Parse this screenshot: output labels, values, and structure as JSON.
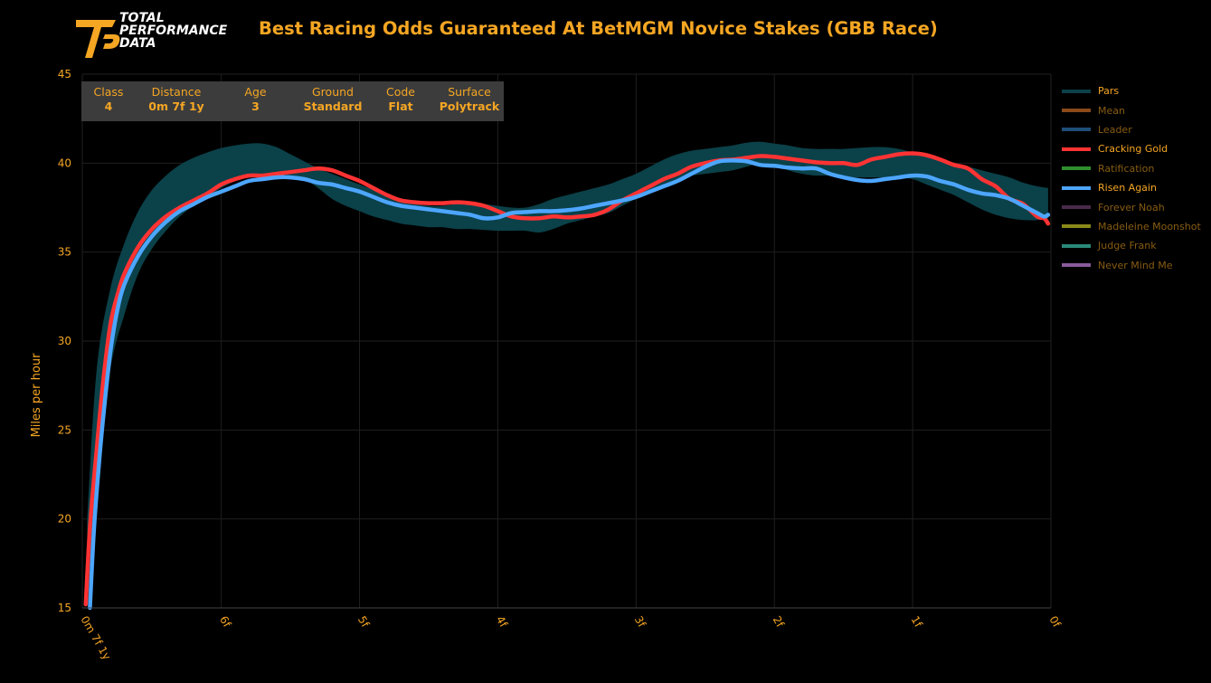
{
  "brand": {
    "line1": "TOTAL",
    "line2": "PERFORMANCE",
    "line3": "DATA"
  },
  "title": "Best Racing Odds Guaranteed At BetMGM Novice Stakes (GBB Race)",
  "colors": {
    "accent": "#f5a623",
    "band": "#0b4149",
    "grid": "#1f1f1f"
  },
  "race_info": [
    {
      "label": "Class",
      "value": "4"
    },
    {
      "label": "Distance",
      "value": "0m 7f 1y"
    },
    {
      "label": "Age",
      "value": "3"
    },
    {
      "label": "Ground",
      "value": "Standard"
    },
    {
      "label": "Code",
      "value": "Flat"
    },
    {
      "label": "Surface",
      "value": "Polytrack"
    }
  ],
  "chart_data": {
    "type": "line",
    "title": "Best Racing Odds Guaranteed At BetMGM Novice Stakes (GBB Race)",
    "xlabel": "",
    "ylabel": "Miles per hour",
    "xlim": [
      7.005,
      0
    ],
    "ylim": [
      15,
      45
    ],
    "x_ticks": [
      {
        "x": 7.005,
        "label": "0m 7f 1y"
      },
      {
        "x": 6,
        "label": "6f"
      },
      {
        "x": 5,
        "label": "5f"
      },
      {
        "x": 4,
        "label": "4f"
      },
      {
        "x": 3,
        "label": "3f"
      },
      {
        "x": 2,
        "label": "2f"
      },
      {
        "x": 1,
        "label": "1f"
      },
      {
        "x": 0,
        "label": "0f"
      }
    ],
    "y_ticks": [
      15,
      20,
      25,
      30,
      35,
      40,
      45
    ],
    "legend": [
      {
        "name": "Pars",
        "color": "#0b4149",
        "highlight": true
      },
      {
        "name": "Mean",
        "color": "#8a4a1a",
        "highlight": false
      },
      {
        "name": "Leader",
        "color": "#1f4e79",
        "highlight": false
      },
      {
        "name": "Cracking Gold",
        "color": "#ff3333",
        "highlight": true
      },
      {
        "name": "Ratification",
        "color": "#2f8f2f",
        "highlight": false
      },
      {
        "name": "Risen Again",
        "color": "#4da6ff",
        "highlight": true
      },
      {
        "name": "Forever Noah",
        "color": "#4a2a4a",
        "highlight": false
      },
      {
        "name": "Madeleine Moonshot",
        "color": "#8a8a1a",
        "highlight": false
      },
      {
        "name": "Judge Frank",
        "color": "#2a8a7a",
        "highlight": false
      },
      {
        "name": "Never Mind Me",
        "color": "#8a5a9a",
        "highlight": false
      }
    ],
    "band": {
      "name": "Pars",
      "x": [
        6.97,
        6.9,
        6.8,
        6.7,
        6.6,
        6.5,
        6.4,
        6.3,
        6.2,
        6.1,
        6.0,
        5.9,
        5.8,
        5.7,
        5.6,
        5.5,
        5.4,
        5.3,
        5.2,
        5.1,
        5.0,
        4.9,
        4.8,
        4.7,
        4.6,
        4.5,
        4.4,
        4.3,
        4.2,
        4.1,
        4.0,
        3.9,
        3.8,
        3.7,
        3.6,
        3.5,
        3.4,
        3.3,
        3.2,
        3.1,
        3.0,
        2.9,
        2.8,
        2.7,
        2.6,
        2.5,
        2.4,
        2.3,
        2.2,
        2.1,
        2.0,
        1.9,
        1.8,
        1.7,
        1.6,
        1.5,
        1.4,
        1.3,
        1.2,
        1.1,
        1.0,
        0.9,
        0.8,
        0.7,
        0.6,
        0.5,
        0.4,
        0.3,
        0.2,
        0.1,
        0.02
      ],
      "upper": [
        20,
        28.5,
        33,
        35.5,
        37.3,
        38.5,
        39.3,
        39.9,
        40.3,
        40.6,
        40.85,
        41.0,
        41.1,
        41.1,
        40.9,
        40.5,
        40.1,
        39.7,
        39.4,
        39.1,
        38.8,
        38.5,
        38.2,
        37.9,
        37.7,
        37.6,
        37.6,
        37.7,
        37.7,
        37.7,
        37.6,
        37.5,
        37.5,
        37.7,
        38.0,
        38.2,
        38.4,
        38.6,
        38.8,
        39.1,
        39.4,
        39.8,
        40.2,
        40.5,
        40.7,
        40.8,
        40.9,
        41.0,
        41.15,
        41.2,
        41.1,
        41.0,
        40.85,
        40.8,
        40.8,
        40.8,
        40.85,
        40.9,
        40.9,
        40.8,
        40.6,
        40.4,
        40.2,
        40.0,
        39.8,
        39.6,
        39.4,
        39.2,
        38.9,
        38.7,
        38.6
      ],
      "lower": [
        15,
        22.5,
        28.5,
        31.5,
        33.8,
        35.2,
        36.2,
        37.0,
        37.6,
        38.1,
        38.6,
        39.0,
        39.3,
        39.4,
        39.4,
        39.3,
        39.1,
        38.6,
        38.0,
        37.6,
        37.3,
        37.0,
        36.8,
        36.6,
        36.5,
        36.4,
        36.4,
        36.3,
        36.3,
        36.25,
        36.2,
        36.2,
        36.2,
        36.1,
        36.3,
        36.6,
        36.8,
        37.0,
        37.2,
        37.6,
        38.0,
        38.4,
        38.8,
        39.1,
        39.3,
        39.4,
        39.5,
        39.6,
        39.8,
        40.0,
        39.9,
        39.6,
        39.4,
        39.3,
        39.3,
        39.2,
        39.2,
        39.2,
        39.2,
        39.2,
        39.1,
        38.8,
        38.5,
        38.2,
        37.8,
        37.4,
        37.1,
        36.9,
        36.8,
        36.8,
        36.9
      ]
    },
    "series": [
      {
        "name": "Cracking Gold",
        "color": "#ff3333",
        "x": [
          6.98,
          6.95,
          6.9,
          6.85,
          6.8,
          6.75,
          6.7,
          6.6,
          6.5,
          6.4,
          6.3,
          6.2,
          6.1,
          6.0,
          5.9,
          5.8,
          5.7,
          5.6,
          5.5,
          5.4,
          5.3,
          5.2,
          5.1,
          5.0,
          4.9,
          4.8,
          4.7,
          4.6,
          4.5,
          4.4,
          4.3,
          4.2,
          4.1,
          4.0,
          3.9,
          3.8,
          3.7,
          3.6,
          3.5,
          3.4,
          3.3,
          3.2,
          3.1,
          3.0,
          2.9,
          2.8,
          2.7,
          2.6,
          2.5,
          2.4,
          2.3,
          2.2,
          2.1,
          2.0,
          1.9,
          1.8,
          1.7,
          1.6,
          1.5,
          1.4,
          1.3,
          1.2,
          1.1,
          1.0,
          0.9,
          0.8,
          0.7,
          0.6,
          0.5,
          0.4,
          0.3,
          0.2,
          0.1,
          0.05,
          0.02
        ],
        "values": [
          15.2,
          19.5,
          24.0,
          28.0,
          31.0,
          32.6,
          33.8,
          35.3,
          36.3,
          37.0,
          37.5,
          37.9,
          38.3,
          38.8,
          39.1,
          39.3,
          39.3,
          39.4,
          39.5,
          39.6,
          39.7,
          39.6,
          39.3,
          39.0,
          38.6,
          38.2,
          37.9,
          37.8,
          37.75,
          37.75,
          37.8,
          37.75,
          37.6,
          37.3,
          37.0,
          36.9,
          36.9,
          37.0,
          36.95,
          37.0,
          37.1,
          37.4,
          37.9,
          38.3,
          38.7,
          39.1,
          39.4,
          39.8,
          40.0,
          40.15,
          40.2,
          40.3,
          40.4,
          40.35,
          40.25,
          40.15,
          40.05,
          40.0,
          40.0,
          39.9,
          40.2,
          40.35,
          40.5,
          40.55,
          40.45,
          40.2,
          39.9,
          39.7,
          39.1,
          38.7,
          38.0,
          37.7,
          37.0,
          36.9,
          36.6
        ]
      },
      {
        "name": "Risen Again",
        "color": "#4da6ff",
        "x": [
          6.95,
          6.92,
          6.88,
          6.85,
          6.8,
          6.75,
          6.7,
          6.6,
          6.5,
          6.4,
          6.3,
          6.2,
          6.1,
          6.0,
          5.9,
          5.8,
          5.7,
          5.6,
          5.5,
          5.4,
          5.3,
          5.2,
          5.1,
          5.0,
          4.9,
          4.8,
          4.7,
          4.6,
          4.5,
          4.4,
          4.3,
          4.2,
          4.1,
          4.0,
          3.9,
          3.8,
          3.7,
          3.6,
          3.5,
          3.4,
          3.3,
          3.2,
          3.1,
          3.0,
          2.9,
          2.8,
          2.7,
          2.6,
          2.5,
          2.4,
          2.3,
          2.2,
          2.1,
          2.0,
          1.9,
          1.8,
          1.7,
          1.6,
          1.5,
          1.4,
          1.3,
          1.2,
          1.1,
          1.0,
          0.9,
          0.8,
          0.7,
          0.6,
          0.5,
          0.4,
          0.3,
          0.2,
          0.1,
          0.05,
          0.02
        ],
        "values": [
          15.0,
          19.5,
          23.5,
          26.0,
          29.5,
          31.8,
          33.2,
          34.8,
          35.9,
          36.7,
          37.3,
          37.7,
          38.1,
          38.4,
          38.7,
          39.0,
          39.1,
          39.2,
          39.2,
          39.1,
          38.9,
          38.8,
          38.6,
          38.4,
          38.1,
          37.8,
          37.6,
          37.5,
          37.4,
          37.3,
          37.2,
          37.1,
          36.9,
          36.95,
          37.2,
          37.25,
          37.3,
          37.3,
          37.35,
          37.45,
          37.6,
          37.75,
          37.9,
          38.1,
          38.4,
          38.7,
          39.0,
          39.4,
          39.8,
          40.1,
          40.15,
          40.1,
          39.9,
          39.85,
          39.75,
          39.7,
          39.7,
          39.4,
          39.2,
          39.05,
          39.0,
          39.1,
          39.2,
          39.3,
          39.25,
          39.0,
          38.8,
          38.5,
          38.3,
          38.2,
          38.0,
          37.6,
          37.2,
          37.0,
          37.1
        ]
      }
    ]
  }
}
